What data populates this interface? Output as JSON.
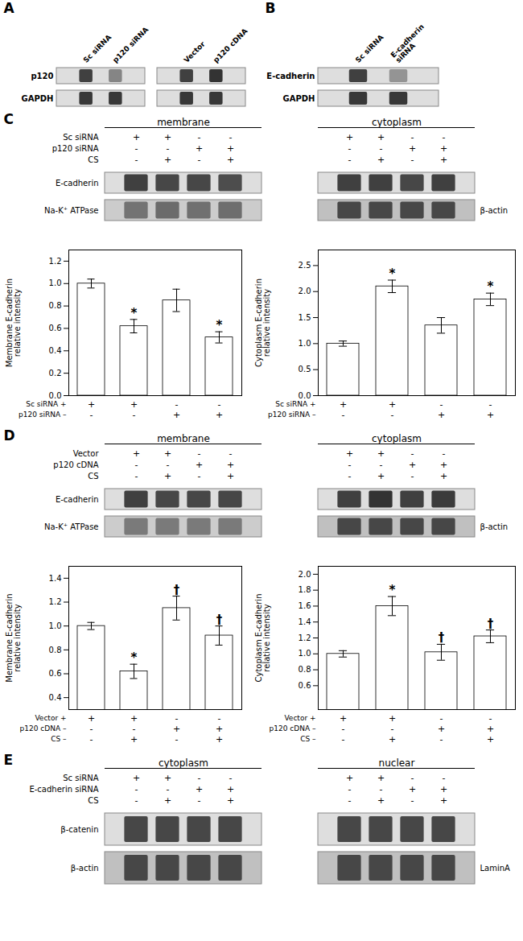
{
  "chart_data": [
    {
      "type": "blot",
      "title": "A",
      "column_labels": [
        "Sc siRNA",
        "p120 siRNA",
        "Vector",
        "p120 cDNA"
      ],
      "rows": [
        {
          "name": "p120",
          "values": [
            [
              0.25,
              0.52
            ],
            [
              0.25,
              0.2
            ]
          ],
          "colors": [
            "#DEDEDE",
            "#DEDEDE"
          ]
        },
        {
          "name": "GAPDH",
          "values": [
            [
              0.22,
              0.22
            ],
            [
              0.22,
              0.22
            ]
          ],
          "colors": [
            "#DEDEDE",
            "#DEDEDE"
          ]
        }
      ]
    },
    {
      "type": "blot",
      "title": "B",
      "column_labels": [
        "Sc siRNA",
        "E-cadherin\nsiRNA"
      ],
      "rows": [
        {
          "name": "E-cadherin",
          "values": [
            [
              0.25,
              0.58
            ]
          ],
          "colors": [
            "#DEDEDE"
          ]
        },
        {
          "name": "GAPDH",
          "values": [
            [
              0.22,
              0.22
            ]
          ],
          "colors": [
            "#DEDEDE"
          ]
        }
      ]
    },
    {
      "type": "blot",
      "title": "C",
      "sections": [
        "membrane",
        "cytoplasm"
      ],
      "table": {
        "row_labels": [
          "Sc siRNA",
          "p120 siRNA",
          "CS"
        ],
        "signs_left": [
          [
            "+",
            "+",
            "-",
            "-"
          ],
          [
            "-",
            "-",
            "+",
            "+"
          ],
          [
            "-",
            "+",
            "-",
            "+"
          ]
        ],
        "signs_right": [
          [
            "+",
            "+",
            "-",
            "-"
          ],
          [
            "-",
            "-",
            "+",
            "+"
          ],
          [
            "-",
            "+",
            "-",
            "+"
          ]
        ]
      },
      "rows": [
        {
          "name": "E-cadherin",
          "values": [
            [
              0.25,
              0.28,
              0.28,
              0.3
            ],
            [
              0.25,
              0.25,
              0.28,
              0.25
            ]
          ],
          "colors": [
            "#DEDEDE",
            "#DEDEDE"
          ]
        },
        {
          "name": "Na-K⁺ ATPase",
          "right_name": "β-actin",
          "values": [
            [
              0.45,
              0.42,
              0.44,
              0.43
            ],
            [
              0.28,
              0.28,
              0.28,
              0.28
            ]
          ],
          "colors": [
            "#CCCCCC",
            "#C0C0C0"
          ]
        }
      ]
    },
    {
      "type": "bar",
      "categories": [
        null,
        null,
        null,
        null
      ],
      "values": [
        1.0,
        0.62,
        0.85,
        0.52
      ],
      "errors": [
        0.04,
        0.06,
        0.1,
        0.05
      ],
      "annotations": [
        null,
        "*",
        null,
        "*"
      ],
      "color": "white",
      "ylabel": "Membrane E-cadherin\nrelative intensity",
      "ylim": [
        0,
        1.3
      ],
      "yticks": [
        {
          "value": 0.0,
          "label": "0.0"
        },
        0.2,
        0.4,
        0.6,
        0.8,
        {
          "value": 1.0,
          "label": "1.0"
        },
        1.2
      ],
      "x_table": {
        "row_labels": [
          "Sc siRNA +",
          "p120 siRNA –"
        ],
        "signs": [
          [
            "+",
            "+",
            "-",
            "-"
          ],
          [
            "-",
            "-",
            "+",
            "+"
          ]
        ]
      }
    },
    {
      "type": "bar",
      "categories": [
        null,
        null,
        null,
        null
      ],
      "values": [
        1.0,
        2.1,
        1.35,
        1.85
      ],
      "errors": [
        0.05,
        0.12,
        0.15,
        0.12
      ],
      "annotations": [
        null,
        "*",
        null,
        "*"
      ],
      "color": "white",
      "ylabel": "Cytoplasm E-cadherin\nrelative intensity",
      "ylim": [
        0,
        2.8
      ],
      "yticks": [
        {
          "value": 0.0,
          "label": "0.0"
        },
        0.5,
        {
          "value": 1.0,
          "label": "1.0"
        },
        1.5,
        {
          "value": 2.0,
          "label": "2.0"
        },
        2.5
      ],
      "x_table": {
        "row_labels": [
          "Sc siRNA +",
          "p120 siRNA –"
        ],
        "signs": [
          [
            "+",
            "+",
            "-",
            "-"
          ],
          [
            "-",
            "-",
            "+",
            "+"
          ]
        ]
      }
    },
    {
      "type": "blot",
      "title": "D",
      "sections": [
        "membrane",
        "cytoplasm"
      ],
      "table": {
        "row_labels": [
          "Vector",
          "p120 cDNA",
          "CS"
        ],
        "signs_left": [
          [
            "+",
            "+",
            "-",
            "-"
          ],
          [
            "-",
            "-",
            "+",
            "+"
          ],
          [
            "-",
            "+",
            "-",
            "+"
          ]
        ],
        "signs_right": [
          [
            "+",
            "+",
            "-",
            "-"
          ],
          [
            "-",
            "-",
            "+",
            "+"
          ],
          [
            "-",
            "+",
            "-",
            "+"
          ]
        ]
      },
      "rows": [
        {
          "name": "E-cadherin",
          "values": [
            [
              0.25,
              0.28,
              0.28,
              0.28
            ],
            [
              0.25,
              0.2,
              0.25,
              0.23
            ]
          ],
          "colors": [
            "#DEDEDE",
            "#DEDEDE"
          ]
        },
        {
          "name": "Na-K⁺ ATPase",
          "right_name": "β-actin",
          "values": [
            [
              0.48,
              0.48,
              0.48,
              0.48
            ],
            [
              0.28,
              0.28,
              0.28,
              0.28
            ]
          ],
          "colors": [
            "#CCCCCC",
            "#C0C0C0"
          ]
        }
      ]
    },
    {
      "type": "bar",
      "categories": [
        null,
        null,
        null,
        null
      ],
      "values": [
        1.0,
        0.62,
        1.15,
        0.92
      ],
      "errors": [
        0.03,
        0.06,
        0.1,
        0.08
      ],
      "annotations": [
        null,
        "*",
        "†",
        "†"
      ],
      "color": "white",
      "ylabel": "Membrane E-cadherin\nrelative intensity",
      "ylim": [
        0.3,
        1.5
      ],
      "yticks": [
        0.4,
        0.6,
        0.8,
        {
          "value": 1.0,
          "label": "1.0"
        },
        1.2,
        1.4
      ],
      "x_table": {
        "row_labels": [
          "Vector +",
          "p120 cDNA –",
          "CS –"
        ],
        "signs": [
          [
            "+",
            "+",
            "-",
            "-"
          ],
          [
            "-",
            "-",
            "+",
            "+"
          ],
          [
            "-",
            "+",
            "-",
            "+"
          ]
        ]
      }
    },
    {
      "type": "bar",
      "categories": [
        null,
        null,
        null,
        null
      ],
      "values": [
        1.0,
        1.6,
        1.02,
        1.22
      ],
      "errors": [
        0.04,
        0.12,
        0.1,
        0.08
      ],
      "annotations": [
        null,
        "*",
        "†",
        "†"
      ],
      "color": "white",
      "ylabel": "Cytoplasm E-cadherin\nrelative intensity",
      "ylim": [
        0.3,
        2.1
      ],
      "yticks": [
        0.6,
        0.8,
        {
          "value": 1.0,
          "label": "1.0"
        },
        1.2,
        1.4,
        1.6,
        1.8,
        {
          "value": 2.0,
          "label": "2.0"
        }
      ],
      "x_table": {
        "row_labels": [
          "Vector +",
          "p120 cDNA –",
          "CS –"
        ],
        "signs": [
          [
            "+",
            "+",
            "-",
            "-"
          ],
          [
            "-",
            "-",
            "+",
            "+"
          ],
          [
            "-",
            "+",
            "-",
            "+"
          ]
        ]
      }
    },
    {
      "type": "blot",
      "title": "E",
      "sections": [
        "cytoplasm",
        "nuclear"
      ],
      "table": {
        "row_labels": [
          "Sc siRNA",
          "E-cadherin siRNA",
          "CS"
        ],
        "signs_left": [
          [
            "+",
            "+",
            "-",
            "-"
          ],
          [
            "-",
            "-",
            "+",
            "+"
          ],
          [
            "-",
            "+",
            "-",
            "+"
          ]
        ],
        "signs_right": [
          [
            "+",
            "+",
            "-",
            "-"
          ],
          [
            "-",
            "-",
            "+",
            "+"
          ],
          [
            "-",
            "+",
            "-",
            "+"
          ]
        ]
      },
      "rows": [
        {
          "name": "β-catenin",
          "values": [
            [
              0.28,
              0.28,
              0.28,
              0.28
            ],
            [
              0.28,
              0.28,
              0.28,
              0.28
            ]
          ],
          "colors": [
            "#DEDEDE",
            "#DEDEDE"
          ]
        },
        {
          "name": "β-actin",
          "right_name": "LaminA",
          "values": [
            [
              0.28,
              0.28,
              0.28,
              0.28
            ],
            [
              0.28,
              0.28,
              0.28,
              0.28
            ]
          ],
          "colors": [
            "#C0C0C0",
            "#C0C0C0"
          ]
        }
      ]
    }
  ]
}
